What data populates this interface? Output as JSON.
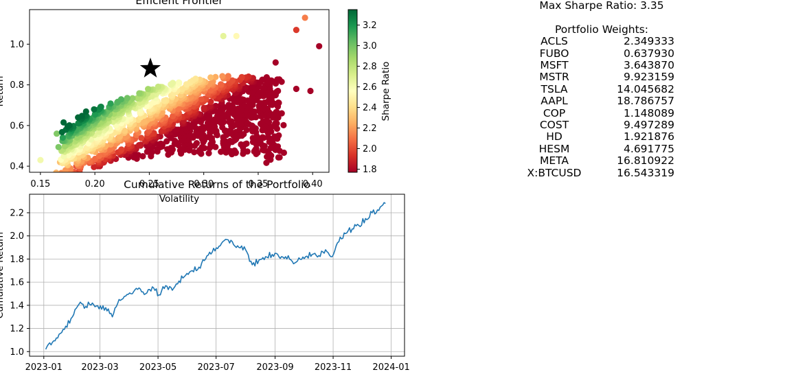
{
  "colors": {
    "line": "#1f77b4",
    "grid": "#b0b0b0",
    "star": "#000000",
    "colormap": [
      "#a50026",
      "#d73027",
      "#f46d43",
      "#fdae61",
      "#fee08b",
      "#ffffbf",
      "#d9ef8b",
      "#a6d96a",
      "#66bd63",
      "#1a9850",
      "#006837"
    ]
  },
  "chart_data": [
    {
      "type": "scatter",
      "title": "Efficient Frontier",
      "xlabel": "Volatility",
      "ylabel": "Return",
      "xlim": [
        0.14,
        0.415
      ],
      "ylim": [
        0.37,
        1.17
      ],
      "xticks": [
        "0.15",
        "0.20",
        "0.25",
        "0.30",
        "0.35",
        "0.40"
      ],
      "yticks": [
        "0.4",
        "0.6",
        "0.8",
        "1.0"
      ],
      "grid": false,
      "colorbar": {
        "label": "Sharpe Ratio",
        "range": [
          1.77,
          3.35
        ],
        "ticks": [
          "1.8",
          "2.0",
          "2.2",
          "2.4",
          "2.6",
          "2.8",
          "3.0",
          "3.2"
        ]
      },
      "max_sharpe_point": {
        "x": 0.251,
        "y": 0.88,
        "marker": "star"
      },
      "cloud": {
        "description_points": "sampled random portfolios",
        "outliers": [
          {
            "x": 0.15,
            "y": 0.43,
            "sharpe": 2.55
          },
          {
            "x": 0.168,
            "y": 0.42,
            "sharpe": 2.3
          },
          {
            "x": 0.183,
            "y": 0.4,
            "sharpe": 2.05
          },
          {
            "x": 0.165,
            "y": 0.56,
            "sharpe": 2.95
          },
          {
            "x": 0.306,
            "y": 0.62,
            "sharpe": 1.95
          },
          {
            "x": 0.327,
            "y": 0.68,
            "sharpe": 1.9
          },
          {
            "x": 0.337,
            "y": 0.63,
            "sharpe": 1.8
          },
          {
            "x": 0.347,
            "y": 0.75,
            "sharpe": 2.0
          },
          {
            "x": 0.353,
            "y": 0.7,
            "sharpe": 1.85
          },
          {
            "x": 0.362,
            "y": 0.73,
            "sharpe": 2.1
          },
          {
            "x": 0.385,
            "y": 0.78,
            "sharpe": 1.95
          },
          {
            "x": 0.398,
            "y": 0.77,
            "sharpe": 1.9
          },
          {
            "x": 0.406,
            "y": 0.99,
            "sharpe": 2.4
          },
          {
            "x": 0.393,
            "y": 1.13,
            "sharpe": 2.85
          },
          {
            "x": 0.385,
            "y": 1.07,
            "sharpe": 2.65
          },
          {
            "x": 0.366,
            "y": 0.91,
            "sharpe": 2.3
          },
          {
            "x": 0.33,
            "y": 1.04,
            "sharpe": 3.05
          },
          {
            "x": 0.318,
            "y": 1.04,
            "sharpe": 3.15
          }
        ]
      }
    },
    {
      "type": "line",
      "title": "Cumulative Returns of the Portfolio",
      "xlabel": "",
      "ylabel": "Cumulative Return",
      "grid": true,
      "xticks": [
        "2023-01",
        "2023-03",
        "2023-05",
        "2023-07",
        "2023-09",
        "2023-11",
        "2024-01"
      ],
      "yticks": [
        "1.0",
        "1.2",
        "1.4",
        "1.6",
        "1.8",
        "2.0",
        "2.2"
      ],
      "ylim": [
        0.96,
        2.36
      ],
      "series": [
        {
          "x": [
            "2023-01-03",
            "2023-01-10",
            "2023-01-17",
            "2023-01-24",
            "2023-01-31",
            "2023-02-07",
            "2023-02-14",
            "2023-02-21",
            "2023-02-28",
            "2023-03-07",
            "2023-03-14",
            "2023-03-21",
            "2023-03-28",
            "2023-04-04",
            "2023-04-11",
            "2023-04-18",
            "2023-04-25",
            "2023-05-02",
            "2023-05-09",
            "2023-05-16",
            "2023-05-23",
            "2023-05-30",
            "2023-06-06",
            "2023-06-13",
            "2023-06-20",
            "2023-06-27",
            "2023-07-04",
            "2023-07-11",
            "2023-07-18",
            "2023-07-25",
            "2023-08-01",
            "2023-08-08",
            "2023-08-15",
            "2023-08-22",
            "2023-08-29",
            "2023-09-05",
            "2023-09-12",
            "2023-09-19",
            "2023-09-26",
            "2023-10-03",
            "2023-10-10",
            "2023-10-17",
            "2023-10-24",
            "2023-10-31",
            "2023-11-07",
            "2023-11-14",
            "2023-11-21",
            "2023-11-28",
            "2023-12-05",
            "2023-12-12",
            "2023-12-19",
            "2023-12-26"
          ],
          "values": [
            1.02,
            1.08,
            1.15,
            1.22,
            1.3,
            1.41,
            1.39,
            1.42,
            1.37,
            1.38,
            1.3,
            1.45,
            1.48,
            1.5,
            1.55,
            1.5,
            1.56,
            1.49,
            1.57,
            1.53,
            1.61,
            1.66,
            1.7,
            1.73,
            1.8,
            1.86,
            1.91,
            1.97,
            1.95,
            1.9,
            1.88,
            1.75,
            1.79,
            1.82,
            1.84,
            1.82,
            1.82,
            1.78,
            1.81,
            1.82,
            1.84,
            1.83,
            1.88,
            1.82,
            1.95,
            2.02,
            2.06,
            2.09,
            2.15,
            2.2,
            2.22,
            2.28
          ]
        }
      ]
    }
  ],
  "weights": {
    "title": "Max Sharpe Ratio: 3.35",
    "header": "Portfolio Weights:",
    "rows": [
      {
        "ticker": "ACLS",
        "weight": "2.349333"
      },
      {
        "ticker": "FUBO",
        "weight": "0.637930"
      },
      {
        "ticker": "MSFT",
        "weight": "3.643870"
      },
      {
        "ticker": "MSTR",
        "weight": "9.923159"
      },
      {
        "ticker": "TSLA",
        "weight": "14.045682"
      },
      {
        "ticker": "AAPL",
        "weight": "18.786757"
      },
      {
        "ticker": "COP",
        "weight": "1.148089"
      },
      {
        "ticker": "COST",
        "weight": "9.497289"
      },
      {
        "ticker": "HD",
        "weight": "1.921876"
      },
      {
        "ticker": "HESM",
        "weight": "4.691775"
      },
      {
        "ticker": "META",
        "weight": "16.810922"
      },
      {
        "ticker": "X:BTCUSD",
        "weight": "16.543319"
      }
    ]
  }
}
